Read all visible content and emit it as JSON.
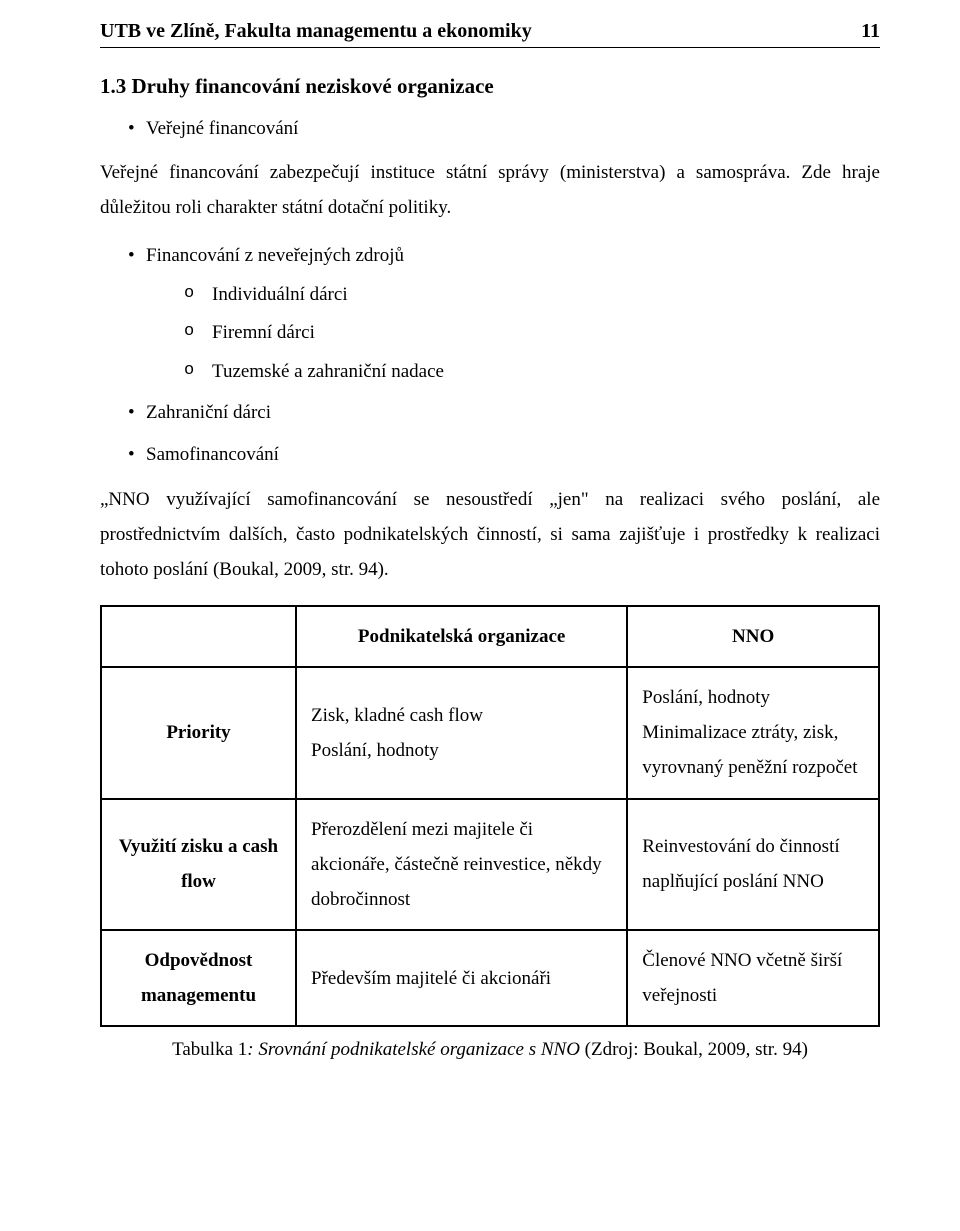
{
  "header": {
    "title": "UTB ve Zlíně, Fakulta managementu a ekonomiky",
    "page": "11"
  },
  "section": {
    "heading": "1.3 Druhy financování neziskové organizace"
  },
  "bullets": {
    "level1": [
      {
        "label": "Veřejné financování"
      }
    ]
  },
  "para1": "Veřejné financování zabezpečují instituce státní správy (ministerstva) a samospráva. Zde hraje důležitou roli charakter státní dotační politiky.",
  "bullets2": {
    "item1": "Financování z neveřejných zdrojů",
    "sub": [
      "Individuální dárci",
      "Firemní dárci",
      "Tuzemské a zahraniční nadace"
    ],
    "item2": "Zahraniční dárci",
    "item3": "Samofinancování"
  },
  "quote": "„NNO využívající samofinancování se nesoustředí „jen\" na realizaci svého poslání, ale prostřednictvím dalších, často podnikatelských činností, si sama zajišťuje i prostředky k realizaci tohoto poslání (Boukal, 2009, str. 94).",
  "table": {
    "columns": [
      "",
      "Podnikatelská organizace",
      "NNO"
    ],
    "rows": [
      {
        "head": "Priority",
        "col1": "Zisk, kladné cash flow\nPoslání, hodnoty",
        "col2": "Poslání, hodnoty\nMinimalizace ztráty, zisk, vyrovnaný peněžní rozpočet"
      },
      {
        "head": "Využití zisku a cash flow",
        "col1": "Přerozdělení mezi majitele či akcionáře, částečně reinvestice, někdy dobročinnost",
        "col2": "Reinvestování do činností naplňující poslání NNO"
      },
      {
        "head": "Odpovědnost managementu",
        "col1": "Především majitelé či akcionáři",
        "col2": "Členové NNO včetně širší veřejnosti"
      }
    ]
  },
  "caption": {
    "prefix": "Tabulka 1",
    "italic": ": Srovnání podnikatelské organizace s NNO ",
    "suffix": "(Zdroj: Boukal, 2009, str. 94)"
  },
  "colors": {
    "text": "#000000",
    "background": "#ffffff",
    "border": "#000000"
  }
}
